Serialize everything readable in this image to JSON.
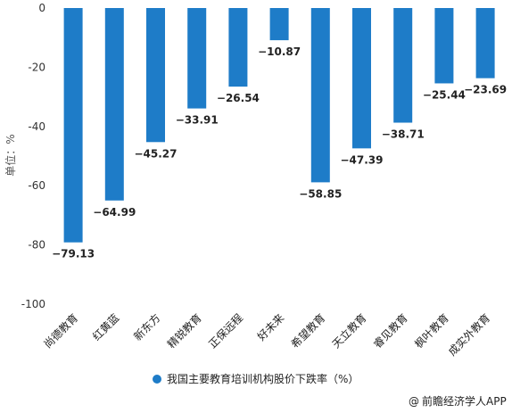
{
  "chart_data": {
    "type": "bar",
    "categories": [
      "尚德教育",
      "红黄蓝",
      "新东方",
      "精锐教育",
      "正保远程",
      "好未来",
      "希望教育",
      "天立教育",
      "睿见教育",
      "枫叶教育",
      "成实外教育"
    ],
    "series": [
      {
        "name": "我国主要教育培训机构股价下跌率（%）",
        "values": [
          -79.13,
          -64.99,
          -45.27,
          -33.91,
          -26.54,
          -10.87,
          -58.85,
          -47.39,
          -38.71,
          -25.44,
          -23.69
        ]
      }
    ],
    "value_labels": [
      "−79.13",
      "−64.99",
      "−45.27",
      "−33.91",
      "−26.54",
      "−10.87",
      "−58.85",
      "−47.39",
      "−38.71",
      "−25.44",
      "−23.69"
    ],
    "ylabel": "单位：%",
    "ylim": [
      -100,
      0
    ],
    "yticks": [
      0,
      -20,
      -40,
      -60,
      -80,
      -100
    ],
    "ytick_labels": [
      "0",
      "-20",
      "-40",
      "-60",
      "-80",
      "-100"
    ],
    "grid": false,
    "legend_position": "bottom-center",
    "bar_color": "#1E7CC8"
  },
  "credit": {
    "icon": "@",
    "text": "前瞻经济学人APP"
  }
}
